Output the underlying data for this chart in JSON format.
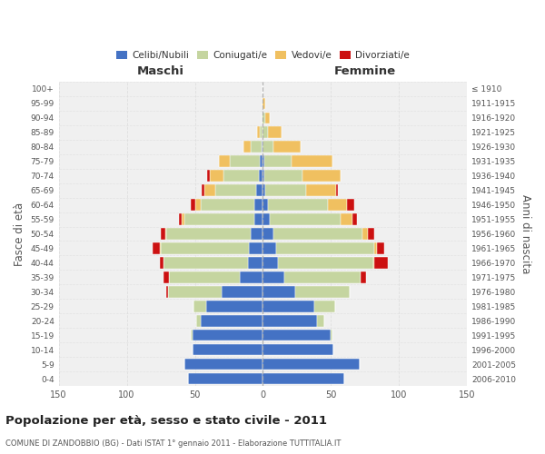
{
  "age_groups": [
    "0-4",
    "5-9",
    "10-14",
    "15-19",
    "20-24",
    "25-29",
    "30-34",
    "35-39",
    "40-44",
    "45-49",
    "50-54",
    "55-59",
    "60-64",
    "65-69",
    "70-74",
    "75-79",
    "80-84",
    "85-89",
    "90-94",
    "95-99",
    "100+"
  ],
  "birth_years": [
    "2006-2010",
    "2001-2005",
    "1996-2000",
    "1991-1995",
    "1986-1990",
    "1981-1985",
    "1976-1980",
    "1971-1975",
    "1966-1970",
    "1961-1965",
    "1956-1960",
    "1951-1955",
    "1946-1950",
    "1941-1945",
    "1936-1940",
    "1931-1935",
    "1926-1930",
    "1921-1925",
    "1916-1920",
    "1911-1915",
    "≤ 1910"
  ],
  "colors": {
    "celibi": "#4472c4",
    "coniugati": "#c5d5a0",
    "vedovi": "#f0c060",
    "divorziati": "#cc1111",
    "background": "#f0f0f0",
    "grid": "#dddddd"
  },
  "maschi_celibi": [
    55,
    58,
    52,
    52,
    46,
    42,
    30,
    17,
    11,
    10,
    9,
    6,
    6,
    5,
    3,
    2,
    1,
    0,
    0,
    0,
    0
  ],
  "maschi_coniugati": [
    0,
    0,
    0,
    1,
    3,
    9,
    40,
    52,
    62,
    65,
    62,
    52,
    40,
    30,
    26,
    22,
    8,
    2,
    1,
    0,
    0
  ],
  "maschi_vedovi": [
    0,
    0,
    0,
    0,
    0,
    0,
    0,
    0,
    0,
    1,
    1,
    2,
    4,
    8,
    10,
    8,
    5,
    2,
    0,
    0,
    0
  ],
  "maschi_divorziati": [
    0,
    0,
    0,
    0,
    0,
    0,
    1,
    4,
    3,
    5,
    3,
    2,
    3,
    2,
    2,
    0,
    0,
    0,
    0,
    0,
    0
  ],
  "femmine_celibi": [
    60,
    71,
    52,
    50,
    40,
    38,
    24,
    16,
    11,
    10,
    8,
    5,
    4,
    2,
    1,
    1,
    0,
    0,
    0,
    0,
    0
  ],
  "femmine_coniugati": [
    0,
    0,
    0,
    1,
    5,
    15,
    40,
    56,
    70,
    72,
    65,
    52,
    44,
    30,
    28,
    20,
    8,
    4,
    2,
    0,
    0
  ],
  "femmine_vedovi": [
    0,
    0,
    0,
    0,
    0,
    0,
    0,
    0,
    1,
    2,
    4,
    9,
    14,
    22,
    28,
    30,
    20,
    10,
    3,
    2,
    0
  ],
  "femmine_divorziati": [
    0,
    0,
    0,
    0,
    0,
    0,
    0,
    4,
    10,
    5,
    5,
    3,
    5,
    1,
    0,
    0,
    0,
    0,
    0,
    0,
    0
  ],
  "xlim": 150,
  "title": "Popolazione per età, sesso e stato civile - 2011",
  "subtitle": "COMUNE DI ZANDOBBIO (BG) - Dati ISTAT 1° gennaio 2011 - Elaborazione TUTTITALIA.IT",
  "ylabel_left": "Fasce di età",
  "ylabel_right": "Anni di nascita"
}
